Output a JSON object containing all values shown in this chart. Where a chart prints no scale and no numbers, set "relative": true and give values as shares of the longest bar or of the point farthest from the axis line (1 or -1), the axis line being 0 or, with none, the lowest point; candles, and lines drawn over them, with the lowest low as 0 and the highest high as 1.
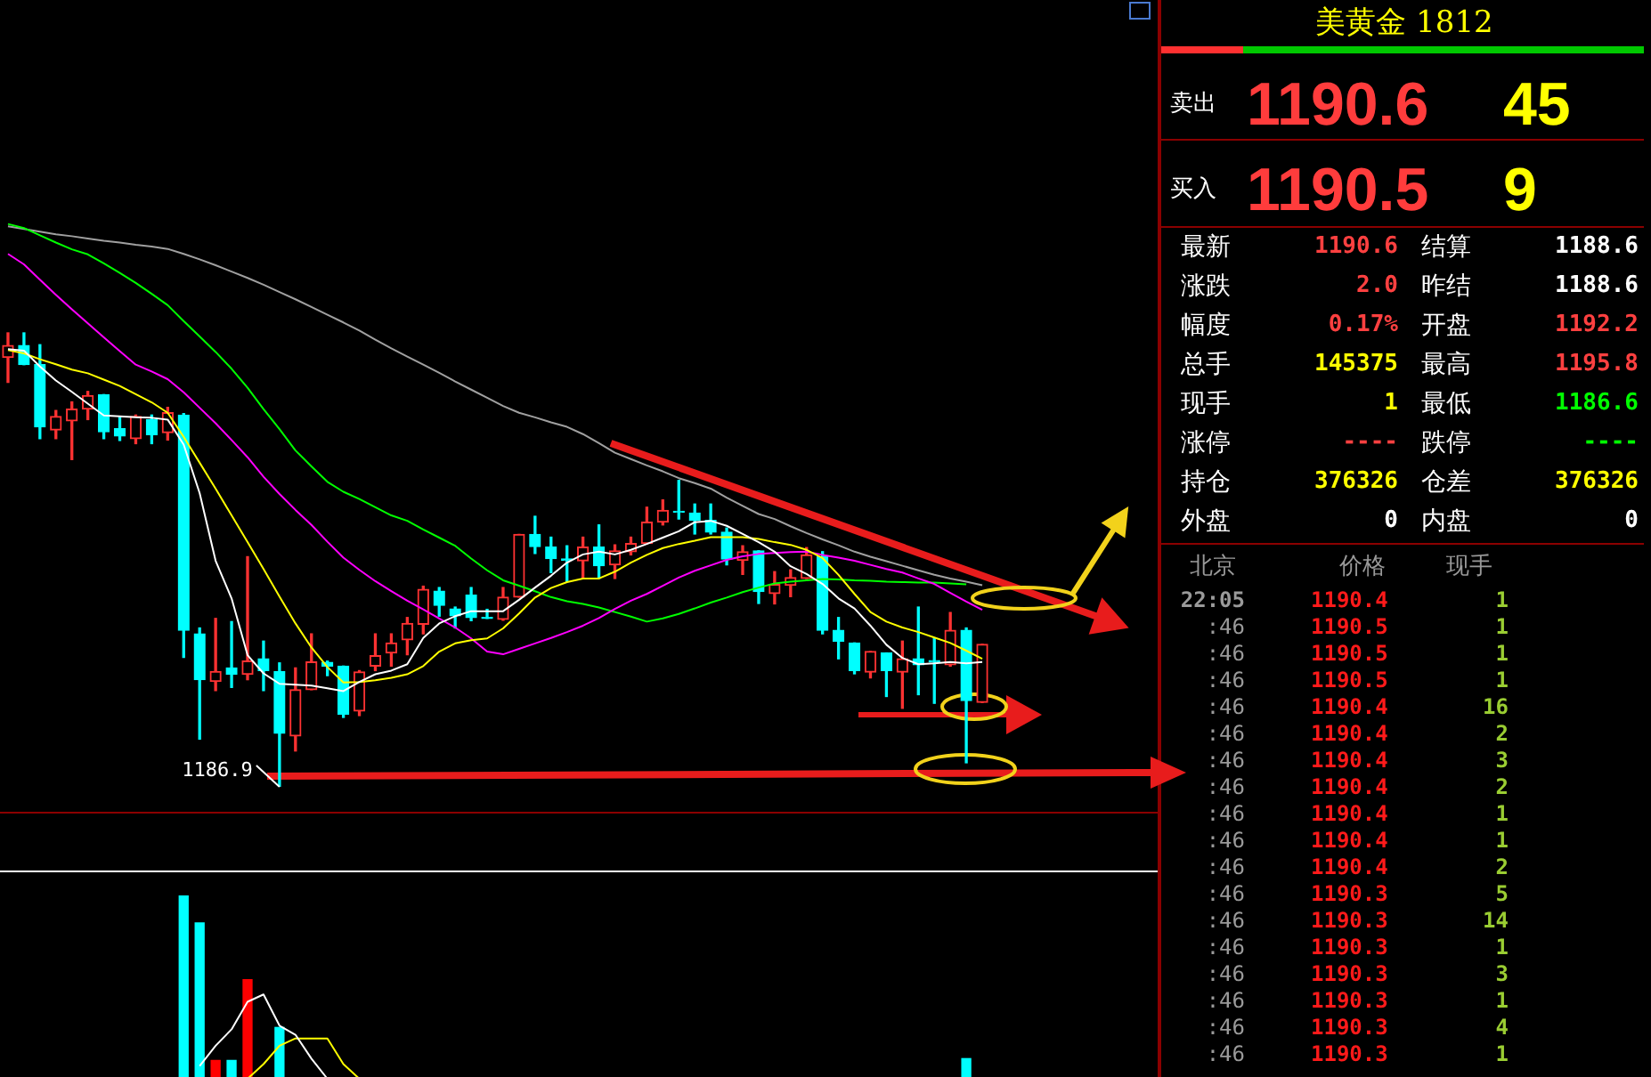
{
  "chart_data": [
    {
      "type": "candlestick",
      "relative": true,
      "categories": [
        null,
        null,
        null,
        null,
        null,
        null,
        null,
        null,
        null,
        null,
        null,
        null,
        null,
        null,
        null,
        null,
        null,
        null,
        null,
        null,
        null,
        null,
        null,
        null,
        null,
        null,
        null,
        null,
        null,
        null,
        null,
        null,
        null,
        null,
        null,
        null,
        null,
        null,
        null,
        null,
        null,
        null,
        null,
        null,
        null,
        null,
        null,
        null,
        null,
        null,
        null,
        null,
        null,
        null,
        null,
        null,
        null,
        null,
        null,
        null,
        null,
        null
      ],
      "ohlc": [
        [
          0.946,
          1,
          0.891,
          0.972
        ],
        [
          0.972,
          1,
          0.93,
          0.93
        ],
        [
          0.93,
          0.974,
          0.767,
          0.793
        ],
        [
          0.786,
          0.829,
          0.767,
          0.816
        ],
        [
          0.806,
          0.848,
          0.721,
          0.832
        ],
        [
          0.832,
          0.871,
          0.809,
          0.862
        ],
        [
          0.864,
          0.864,
          0.767,
          0.782
        ],
        [
          0.789,
          0.815,
          0.763,
          0.773
        ],
        [
          0.767,
          0.819,
          0.756,
          0.816
        ],
        [
          0.809,
          0.819,
          0.756,
          0.776
        ],
        [
          0.78,
          0.836,
          0.764,
          0.824
        ],
        [
          0.819,
          0.822,
          0.285,
          0.345
        ],
        [
          0.337,
          0.35,
          0.105,
          0.236
        ],
        [
          0.232,
          0.371,
          0.212,
          0.254
        ],
        [
          0.262,
          0.364,
          0.219,
          0.248
        ],
        [
          0.248,
          0.507,
          0.236,
          0.277
        ],
        [
          0.282,
          0.321,
          0.212,
          0.256
        ],
        [
          0.254,
          0.273,
          0,
          0.118
        ],
        [
          0.112,
          0.262,
          0.079,
          0.214
        ],
        [
          0.214,
          0.337,
          0.214,
          0.275
        ],
        [
          0.274,
          0.277,
          0.245,
          0.266
        ],
        [
          0.266,
          0.266,
          0.153,
          0.16
        ],
        [
          0.167,
          0.256,
          0.157,
          0.253
        ],
        [
          0.266,
          0.337,
          0.256,
          0.289
        ],
        [
          0.295,
          0.337,
          0.266,
          0.317
        ],
        [
          0.324,
          0.373,
          0.291,
          0.36
        ],
        [
          0.358,
          0.442,
          0.337,
          0.435
        ],
        [
          0.431,
          0.439,
          0.376,
          0.4
        ],
        [
          0.392,
          0.396,
          0.35,
          0.377
        ],
        [
          0.422,
          0.439,
          0.366,
          0.373
        ],
        [
          0.373,
          0.391,
          0.371,
          0.371
        ],
        [
          0.369,
          0.439,
          0.367,
          0.418
        ],
        [
          0.418,
          0.556,
          0.418,
          0.556
        ],
        [
          0.556,
          0.596,
          0.514,
          0.529
        ],
        [
          0.528,
          0.55,
          0.472,
          0.503
        ],
        [
          0.502,
          0.531,
          0.452,
          0.499
        ],
        [
          0.498,
          0.55,
          0.459,
          0.528
        ],
        [
          0.528,
          0.577,
          0.459,
          0.487
        ],
        [
          0.489,
          0.533,
          0.459,
          0.52
        ],
        [
          0.518,
          0.55,
          0.511,
          0.536
        ],
        [
          0.536,
          0.616,
          0.536,
          0.583
        ],
        [
          0.583,
          0.632,
          0.577,
          0.609
        ],
        [
          0.607,
          0.675,
          0.59,
          0.605
        ],
        [
          0.603,
          0.623,
          0.557,
          0.587
        ],
        [
          0.587,
          0.623,
          0.557,
          0.561
        ],
        [
          0.561,
          0.57,
          0.489,
          0.502
        ],
        [
          0.499,
          0.531,
          0.468,
          0.518
        ],
        [
          0.52,
          0.52,
          0.404,
          0.43
        ],
        [
          0.426,
          0.474,
          0.403,
          0.446
        ],
        [
          0.444,
          0.478,
          0.419,
          0.461
        ],
        [
          0.459,
          0.527,
          0.459,
          0.511
        ],
        [
          0.507,
          0.518,
          0.337,
          0.345
        ],
        [
          0.345,
          0.373,
          0.282,
          0.321
        ],
        [
          0.317,
          0.317,
          0.249,
          0.256
        ],
        [
          0.253,
          0.298,
          0.24,
          0.298
        ],
        [
          0.295,
          0.295,
          0.199,
          0.256
        ],
        [
          0.253,
          0.321,
          0.173,
          0.282
        ],
        [
          0.282,
          0.396,
          0.203,
          0.269
        ],
        [
          0.278,
          0.328,
          0.184,
          0.275
        ],
        [
          0.269,
          0.384,
          0.266,
          0.345
        ],
        [
          0.345,
          0.35,
          0.053,
          0.19
        ],
        [
          0.186,
          0.314,
          0.186,
          0.314
        ]
      ],
      "colors": [
        "#ff3232",
        "#00ffff",
        "#00ffff",
        "#ff3232",
        "#ff3232",
        "#ff3232",
        "#00ffff",
        "#00ffff",
        "#ff3232",
        "#00ffff",
        "#ff3232",
        "#00ffff",
        "#00ffff",
        "#ff3232",
        "#00ffff",
        "#ff3232",
        "#00ffff",
        "#00ffff",
        "#ff3232",
        "#ff3232",
        "#00ffff",
        "#00ffff",
        "#ff3232",
        "#ff3232",
        "#ff3232",
        "#ff3232",
        "#ff3232",
        "#00ffff",
        "#00ffff",
        "#00ffff",
        "#00ffff",
        "#ff3232",
        "#ff3232",
        "#00ffff",
        "#00ffff",
        "#00ffff",
        "#ff3232",
        "#00ffff",
        "#ff3232",
        "#ff3232",
        "#ff3232",
        "#ff3232",
        "#00ffff",
        "#00ffff",
        "#00ffff",
        "#00ffff",
        "#ff3232",
        "#00ffff",
        "#ff3232",
        "#ff3232",
        "#ff3232",
        "#00ffff",
        "#00ffff",
        "#00ffff",
        "#ff3232",
        "#00ffff",
        "#ff3232",
        "#00ffff",
        "#00ffff",
        "#ff3232",
        "#00ffff",
        "#ff3232"
      ],
      "series": [
        {
          "type": "line",
          "color": "#ffffff",
          "values": [
            0.964,
            0.961,
            0.926,
            0.895,
            0.87,
            0.844,
            0.818,
            0.816,
            0.814,
            0.813,
            0.809,
            0.754,
            0.647,
            0.498,
            0.415,
            0.29,
            0.25,
            0.227,
            0.225,
            0.223,
            0.217,
            0.211,
            0.231,
            0.248,
            0.256,
            0.27,
            0.328,
            0.36,
            0.376,
            0.387,
            0.387,
            0.387,
            0.412,
            0.439,
            0.465,
            0.494,
            0.512,
            0.518,
            0.512,
            0.522,
            0.535,
            0.549,
            0.563,
            0.583,
            0.586,
            0.575,
            0.557,
            0.539,
            0.518,
            0.486,
            0.469,
            0.447,
            0.415,
            0.393,
            0.355,
            0.313,
            0.284,
            0.27,
            0.272,
            0.275,
            0.272,
            0.275
          ]
        },
        {
          "type": "line",
          "color": "#ffff00",
          "values": [
            0.962,
            0.955,
            0.942,
            0.931,
            0.919,
            0.911,
            0.897,
            0.883,
            0.865,
            0.847,
            0.824,
            0.771,
            0.714,
            0.657,
            0.598,
            0.539,
            0.48,
            0.419,
            0.36,
            0.307,
            0.264,
            0.23,
            0.231,
            0.235,
            0.24,
            0.248,
            0.266,
            0.298,
            0.316,
            0.323,
            0.327,
            0.349,
            0.382,
            0.417,
            0.438,
            0.451,
            0.459,
            0.459,
            0.474,
            0.494,
            0.511,
            0.526,
            0.535,
            0.542,
            0.55,
            0.55,
            0.55,
            0.546,
            0.539,
            0.533,
            0.522,
            0.504,
            0.467,
            0.425,
            0.385,
            0.364,
            0.351,
            0.341,
            0.329,
            0.317,
            0.3,
            0.282
          ]
        },
        {
          "type": "line",
          "color": "#ff00ff",
          "values": [
            1.174,
            1.151,
            1.117,
            1.084,
            1.052,
            1.021,
            0.99,
            0.96,
            0.93,
            0.915,
            0.898,
            0.869,
            0.835,
            0.801,
            0.764,
            0.726,
            0.683,
            0.645,
            0.61,
            0.577,
            0.54,
            0.505,
            0.478,
            0.453,
            0.431,
            0.41,
            0.391,
            0.371,
            0.351,
            0.327,
            0.298,
            0.292,
            0.304,
            0.316,
            0.328,
            0.341,
            0.355,
            0.372,
            0.392,
            0.41,
            0.425,
            0.443,
            0.461,
            0.476,
            0.488,
            0.5,
            0.508,
            0.513,
            0.515,
            0.517,
            0.518,
            0.511,
            0.505,
            0.498,
            0.489,
            0.48,
            0.472,
            0.459,
            0.447,
            0.427,
            0.408,
            0.39
          ]
        },
        {
          "type": "line",
          "color": "#00ff00",
          "values": [
            1.24,
            1.231,
            1.215,
            1.199,
            1.184,
            1.173,
            1.153,
            1.132,
            1.11,
            1.086,
            1.061,
            1.026,
            0.992,
            0.958,
            0.921,
            0.879,
            0.832,
            0.788,
            0.741,
            0.706,
            0.672,
            0.65,
            0.634,
            0.616,
            0.598,
            0.586,
            0.567,
            0.549,
            0.531,
            0.503,
            0.477,
            0.455,
            0.443,
            0.431,
            0.418,
            0.409,
            0.403,
            0.395,
            0.385,
            0.375,
            0.364,
            0.371,
            0.381,
            0.393,
            0.406,
            0.417,
            0.429,
            0.439,
            0.448,
            0.452,
            0.455,
            0.458,
            0.457,
            0.455,
            0.454,
            0.452,
            0.451,
            0.45,
            0.45,
            0.448,
            0.446,
            null
          ]
        },
        {
          "type": "line",
          "color": "#a0a0a0",
          "values": [
            1.235,
            1.229,
            1.223,
            1.217,
            1.213,
            1.208,
            1.203,
            1.199,
            1.194,
            1.19,
            1.185,
            1.174,
            1.162,
            1.149,
            1.135,
            1.121,
            1.106,
            1.09,
            1.074,
            1.057,
            1.04,
            1.023,
            1.005,
            0.985,
            0.966,
            0.948,
            0.93,
            0.912,
            0.893,
            0.875,
            0.857,
            0.839,
            0.824,
            0.814,
            0.803,
            0.793,
            0.777,
            0.757,
            0.736,
            0.722,
            0.708,
            0.695,
            0.68,
            0.669,
            0.657,
            0.637,
            0.619,
            0.601,
            0.59,
            0.574,
            0.559,
            0.545,
            0.532,
            0.518,
            0.507,
            0.497,
            0.487,
            0.477,
            0.467,
            0.459,
            0.452,
            0.444
          ]
        }
      ],
      "annotations": [
        "1186.9"
      ]
    },
    {
      "type": "bar",
      "relative": true,
      "categories": [
        null,
        null,
        null,
        null,
        null,
        null,
        null,
        null,
        null,
        null,
        null,
        null,
        null,
        null,
        null,
        null,
        null,
        null,
        null,
        null,
        null,
        null,
        null,
        null,
        null,
        null,
        null,
        null,
        null,
        null,
        null,
        null,
        null,
        null,
        null,
        null,
        null,
        null,
        null,
        null,
        null,
        null,
        null,
        null,
        null,
        null,
        null,
        null,
        null,
        null,
        null,
        null,
        null,
        null,
        null,
        null,
        null,
        null,
        null,
        null,
        null,
        null
      ],
      "series": [
        {
          "type": "bar",
          "colors": [
            null,
            null,
            null,
            null,
            null,
            null,
            null,
            null,
            null,
            null,
            null,
            "#00ffff",
            "#00ffff",
            "#ff0000",
            "#00ffff",
            "#ff0000",
            null,
            "#00ffff",
            null,
            null,
            null,
            null,
            null,
            null,
            null,
            null,
            null,
            null,
            null,
            null,
            null,
            null,
            null,
            null,
            null,
            null,
            null,
            null,
            null,
            null,
            null,
            null,
            null,
            null,
            null,
            null,
            null,
            null,
            null,
            null,
            null,
            null,
            null,
            null,
            null,
            null,
            null,
            null,
            null,
            null,
            "#00ffff",
            null
          ],
          "values": [
            null,
            null,
            null,
            null,
            null,
            null,
            null,
            null,
            null,
            null,
            null,
            1,
            0.85,
            0.1,
            0.1,
            0.54,
            null,
            0.28,
            null,
            null,
            null,
            null,
            null,
            null,
            null,
            null,
            null,
            null,
            null,
            null,
            null,
            null,
            null,
            null,
            null,
            null,
            null,
            null,
            null,
            null,
            null,
            null,
            null,
            null,
            null,
            null,
            null,
            null,
            null,
            null,
            null,
            null,
            null,
            null,
            null,
            null,
            null,
            null,
            null,
            null,
            0.11,
            null
          ]
        },
        {
          "type": "line",
          "color": "#ffffff",
          "values": [
            null,
            null,
            null,
            null,
            null,
            null,
            null,
            null,
            null,
            null,
            null,
            null,
            0.07,
            0.18,
            0.27,
            0.42,
            0.46,
            0.29,
            0.24,
            0.11,
            0,
            null,
            null,
            null,
            null,
            null,
            null,
            null,
            null,
            null,
            null,
            null,
            null,
            null,
            null,
            null,
            null,
            null,
            null,
            null,
            null,
            null,
            null,
            null,
            null,
            null,
            null,
            null,
            null,
            null,
            null,
            null,
            null,
            null,
            null,
            null,
            null,
            null,
            null,
            null,
            null,
            null
          ]
        },
        {
          "type": "line",
          "color": "#ffff00",
          "values": [
            null,
            null,
            null,
            null,
            null,
            null,
            null,
            null,
            null,
            null,
            null,
            null,
            null,
            null,
            null,
            0,
            0.08,
            0.18,
            0.22,
            0.22,
            0.22,
            0.08,
            0,
            null,
            null,
            null,
            null,
            null,
            null,
            null,
            null,
            null,
            null,
            null,
            null,
            null,
            null,
            null,
            null,
            null,
            null,
            null,
            null,
            null,
            null,
            null,
            null,
            null,
            null,
            null,
            null,
            null,
            null,
            null,
            null,
            null,
            null,
            null,
            null,
            null,
            null,
            null
          ]
        }
      ]
    },
    {
      "type": "other",
      "title": "美黄金 1812",
      "annotations": [
        "卖出",
        "1190.6",
        "45",
        "买入",
        "1190.5",
        "9",
        "最新",
        "1190.6",
        "结算",
        "1188.6",
        "涨跌",
        "2.0",
        "昨结",
        "1188.6",
        "幅度",
        "0.17%",
        "开盘",
        "1192.2",
        "总手",
        "145375",
        "最高",
        "1195.8",
        "现手",
        "1",
        "最低",
        "1186.6",
        "涨停",
        "----",
        "跌停",
        "----",
        "持仓",
        "376326",
        "仓差",
        "376326",
        "外盘",
        "0",
        "内盘",
        "0",
        "北京",
        "价格",
        "现手",
        "22:05",
        "1190.4",
        "1",
        ":46",
        "1190.5",
        "1",
        ":46",
        "1190.5",
        "1",
        ":46",
        "1190.5",
        "1",
        ":46",
        "1190.4",
        "16",
        ":46",
        "1190.4",
        "2",
        ":46",
        "1190.4",
        "3",
        ":46",
        "1190.4",
        "2",
        ":46",
        "1190.4",
        "1",
        ":46",
        "1190.4",
        "1",
        ":46",
        "1190.4",
        "2",
        ":46",
        "1190.3",
        "5",
        ":46",
        "1190.3",
        "14",
        ":46",
        "1190.3",
        "1",
        ":46",
        "1190.3",
        "3",
        ":46",
        "1190.3",
        "1",
        ":46",
        "1190.3",
        "4",
        ":46",
        "1190.3",
        "1"
      ]
    }
  ]
}
